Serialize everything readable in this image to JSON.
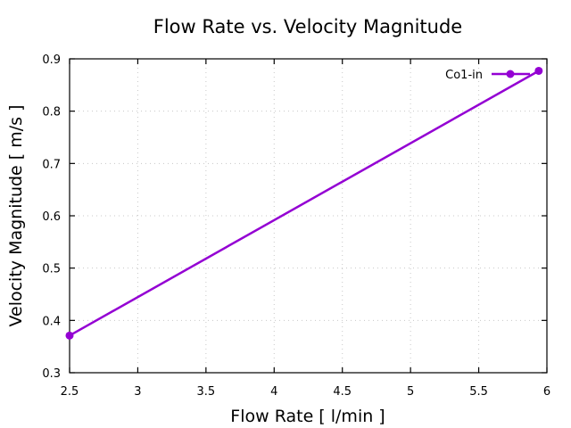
{
  "chart_data": {
    "type": "line",
    "title": "Flow Rate vs. Velocity Magnitude",
    "xlabel": "Flow Rate [ l/min ]",
    "ylabel": "Velocity Magnitude [ m/s ]",
    "xlim": [
      2.5,
      6
    ],
    "ylim": [
      0.3,
      0.9
    ],
    "xticks": [
      2.5,
      3,
      3.5,
      4,
      4.5,
      5,
      5.5,
      6
    ],
    "xtick_labels": [
      "2.5",
      "3",
      "3.5",
      "4",
      "4.5",
      "5",
      "5.5",
      "6"
    ],
    "yticks": [
      0.3,
      0.4,
      0.5,
      0.6,
      0.7,
      0.8,
      0.9
    ],
    "ytick_labels": [
      "0.3",
      "0.4",
      "0.5",
      "0.6",
      "0.7",
      "0.8",
      "0.9"
    ],
    "grid": true,
    "legend_position": "top-right",
    "series": [
      {
        "name": "Co1-in",
        "color": "#9400d3",
        "marker": "circle",
        "x": [
          2.5,
          5.94
        ],
        "y": [
          0.371,
          0.877
        ]
      }
    ]
  }
}
